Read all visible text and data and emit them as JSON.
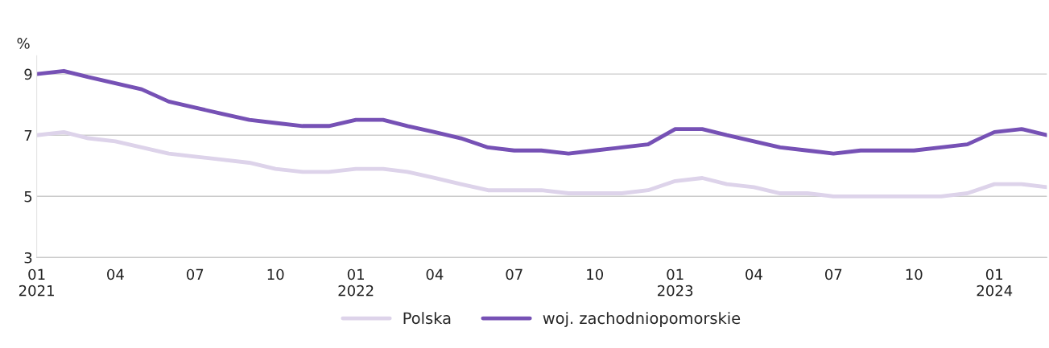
{
  "chart_data": {
    "type": "line",
    "ylabel": "%",
    "x": [
      "2021-01",
      "2021-02",
      "2021-03",
      "2021-04",
      "2021-05",
      "2021-06",
      "2021-07",
      "2021-08",
      "2021-09",
      "2021-10",
      "2021-11",
      "2021-12",
      "2022-01",
      "2022-02",
      "2022-03",
      "2022-04",
      "2022-05",
      "2022-06",
      "2022-07",
      "2022-08",
      "2022-09",
      "2022-10",
      "2022-11",
      "2022-12",
      "2023-01",
      "2023-02",
      "2023-03",
      "2023-04",
      "2023-05",
      "2023-06",
      "2023-07",
      "2023-08",
      "2023-09",
      "2023-10",
      "2023-11",
      "2023-12",
      "2024-01",
      "2024-02",
      "2024-03"
    ],
    "series": [
      {
        "name": "Polska",
        "color": "#ddd3ea",
        "values": [
          7.0,
          7.1,
          6.9,
          6.8,
          6.6,
          6.4,
          6.3,
          6.2,
          6.1,
          5.9,
          5.8,
          5.8,
          5.9,
          5.9,
          5.8,
          5.6,
          5.4,
          5.2,
          5.2,
          5.2,
          5.1,
          5.1,
          5.1,
          5.2,
          5.5,
          5.6,
          5.4,
          5.3,
          5.1,
          5.1,
          5.0,
          5.0,
          5.0,
          5.0,
          5.0,
          5.1,
          5.4,
          5.4,
          5.3
        ]
      },
      {
        "name": "woj. zachodniopomorskie",
        "color": "#7651b5",
        "values": [
          9.0,
          9.1,
          8.9,
          8.7,
          8.5,
          8.1,
          7.9,
          7.7,
          7.5,
          7.4,
          7.3,
          7.3,
          7.5,
          7.5,
          7.3,
          7.1,
          6.9,
          6.6,
          6.5,
          6.5,
          6.4,
          6.5,
          6.6,
          6.7,
          7.2,
          7.2,
          7.0,
          6.8,
          6.6,
          6.5,
          6.4,
          6.5,
          6.5,
          6.5,
          6.6,
          6.7,
          7.1,
          7.2,
          7.0
        ]
      }
    ],
    "xlim": [
      "2021-01",
      "2024-03"
    ],
    "xticks": [
      {
        "value": "2021-01",
        "label": "01\n2021"
      },
      {
        "value": "2021-04",
        "label": "04"
      },
      {
        "value": "2021-07",
        "label": "07"
      },
      {
        "value": "2021-10",
        "label": "10"
      },
      {
        "value": "2022-01",
        "label": "01\n2022"
      },
      {
        "value": "2022-04",
        "label": "04"
      },
      {
        "value": "2022-07",
        "label": "07"
      },
      {
        "value": "2022-10",
        "label": "10"
      },
      {
        "value": "2023-01",
        "label": "01\n2023"
      },
      {
        "value": "2023-04",
        "label": "04"
      },
      {
        "value": "2023-07",
        "label": "07"
      },
      {
        "value": "2023-10",
        "label": "10"
      },
      {
        "value": "2024-01",
        "label": "01\n2024"
      }
    ],
    "ylim": [
      3,
      9.6
    ],
    "yticks": [
      3,
      5,
      7,
      9
    ],
    "grid": "y",
    "legend": "bottom",
    "marker": "none",
    "line_style": "solid"
  }
}
